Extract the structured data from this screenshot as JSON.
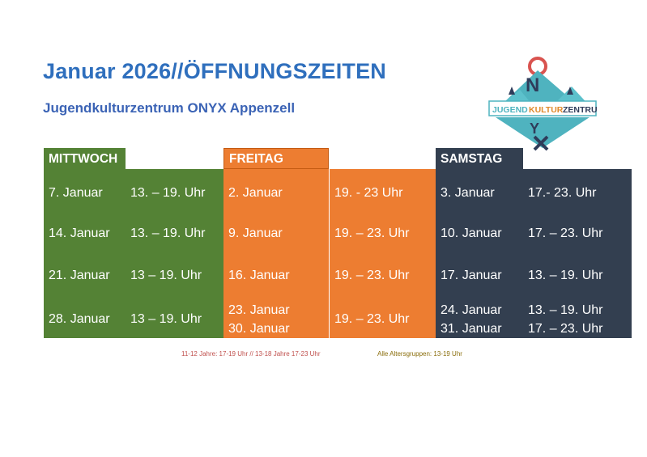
{
  "title": "Januar 2026//ÖFFNUNGSZEITEN",
  "subtitle": "Jugendkulturzentrum ONYX Appenzell",
  "logo": {
    "letters": [
      "O",
      "N",
      "Y",
      "X"
    ],
    "banner": [
      "JUGEND",
      "KULTUR",
      "ZENTRUM"
    ],
    "colors": {
      "teal": "#4fb3bf",
      "navy": "#2f3c5a",
      "red": "#d9534f"
    }
  },
  "colors": {
    "title": "#2f6fbd",
    "wednesday": "#548235",
    "friday": "#ed7d31",
    "saturday": "#333f50"
  },
  "schedule": {
    "headers": [
      "MITTWOCH",
      "FREITAG",
      "SAMSTAG"
    ],
    "rows": [
      {
        "wed_date": "7. Januar",
        "wed_time": "13. – 19. Uhr",
        "fri_date": "2. Januar",
        "fri_time": "19. - 23 Uhr",
        "sat_date": "3. Januar",
        "sat_time": "17.- 23. Uhr"
      },
      {
        "wed_date": "14. Januar",
        "wed_time": "13.  – 19. Uhr",
        "fri_date": "9. Januar",
        "fri_time": "19. – 23. Uhr",
        "sat_date": "10. Januar",
        "sat_time": "17. – 23. Uhr"
      },
      {
        "wed_date": "21. Januar",
        "wed_time": "13 – 19. Uhr",
        "fri_date": "16. Januar",
        "fri_time": "19. – 23. Uhr",
        "sat_date": "17. Januar",
        "sat_time": "13. – 19. Uhr"
      },
      {
        "wed_date": "28. Januar",
        "wed_time": "13 – 19. Uhr",
        "fri_date": "23. Januar",
        "fri_date2": "30. Januar",
        "fri_time": "19. – 23. Uhr",
        "sat_date": "24. Januar",
        "sat_date2": "31. Januar",
        "sat_time": "13. – 19. Uhr",
        "sat_time2": "17. – 23. Uhr"
      }
    ]
  },
  "notes": {
    "age_groups": "11-12 Jahre: 17-19 Uhr // 13-18 Jahre 17-23 Uhr",
    "all_groups": "Alle Altersgruppen: 13-19 Uhr"
  }
}
